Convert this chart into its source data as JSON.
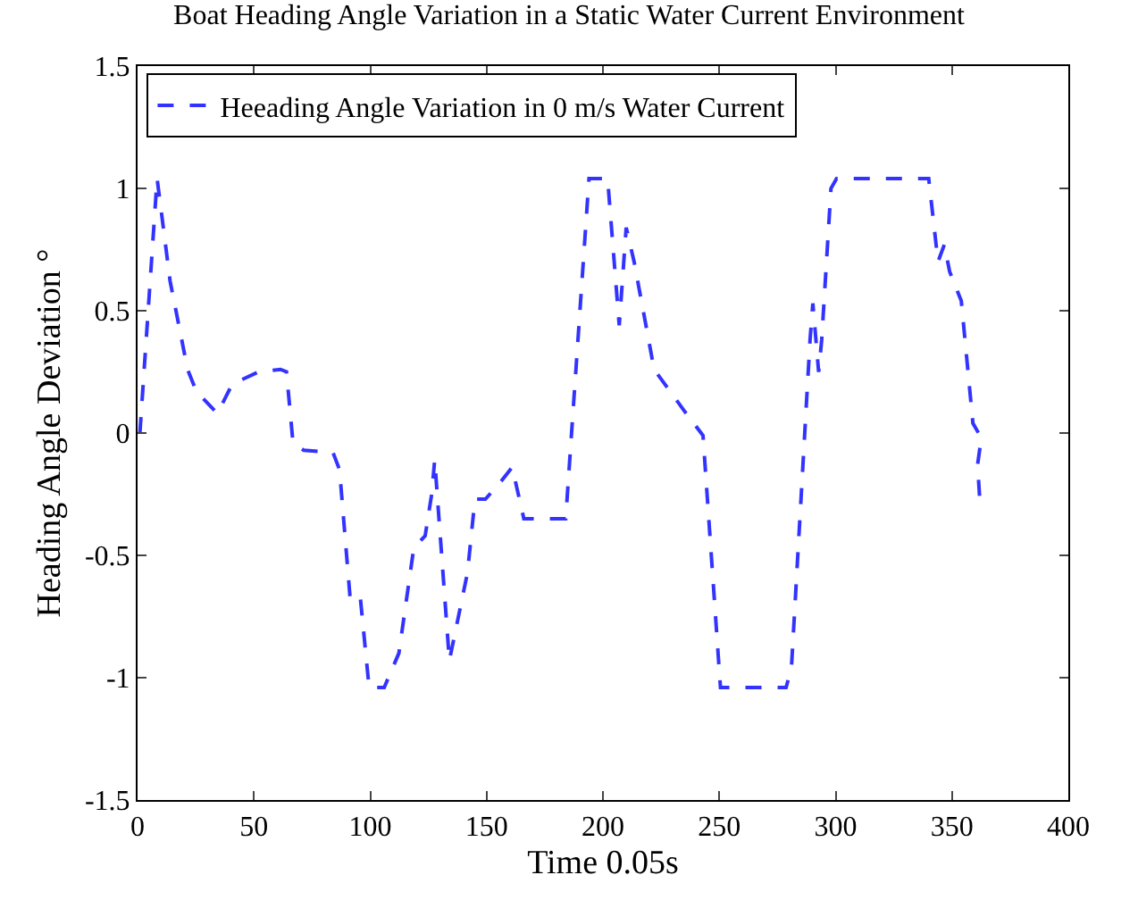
{
  "chart_data": {
    "type": "line",
    "title": "Boat Heading Angle Variation in a Static Water Current Environment",
    "xlabel": "Time 0.05s",
    "ylabel": "Heading Angle Deviation °",
    "x": [
      1,
      8.4,
      14,
      21.5,
      25.3,
      34.3,
      40.7,
      52,
      61.4,
      64,
      66.8,
      71.4,
      84,
      86.8,
      91.4,
      95.7,
      99.5,
      106,
      112.3,
      118.7,
      123.6,
      126.4,
      127.7,
      129,
      134,
      141.8,
      145,
      149.5,
      156,
      161,
      166,
      184,
      194,
      202,
      207,
      210,
      213.4,
      222,
      235,
      243,
      250.5,
      278.7,
      281,
      289,
      290.2,
      292.7,
      294,
      298,
      300.4,
      340,
      344,
      346.7,
      349,
      354,
      359,
      362.6,
      361,
      362
    ],
    "series": [
      {
        "name": "Heeading Angle Variation in 0 m/s Water Current",
        "color": "#3333ff",
        "values": [
          0,
          1.04,
          0.62,
          0.26,
          0.17,
          0.08,
          0.2,
          0.25,
          0.26,
          0.25,
          -0.04,
          -0.07,
          -0.08,
          -0.15,
          -0.68,
          -0.67,
          -1.04,
          -1.04,
          -0.9,
          -0.47,
          -0.42,
          -0.25,
          -0.11,
          -0.28,
          -0.93,
          -0.57,
          -0.27,
          -0.27,
          -0.2,
          -0.14,
          -0.35,
          -0.35,
          1.04,
          1.04,
          0.44,
          0.84,
          0.7,
          0.26,
          0.09,
          -0.01,
          -1.04,
          -1.04,
          -0.96,
          0.38,
          0.53,
          0.25,
          0.38,
          1,
          1.04,
          1.04,
          0.7,
          0.77,
          0.66,
          0.54,
          0.04,
          -0.02,
          -0.13,
          -0.28
        ]
      }
    ],
    "xlim": [
      0,
      400
    ],
    "xticks": [
      0,
      50,
      100,
      150,
      200,
      250,
      300,
      350,
      400
    ],
    "ylim": [
      -1.5,
      1.5
    ],
    "yticks": [
      -1.5,
      -1,
      -0.5,
      0,
      0.5,
      1,
      1.5
    ],
    "grid": false,
    "legend": "top left",
    "line_style": "dashed",
    "marker": "none"
  }
}
